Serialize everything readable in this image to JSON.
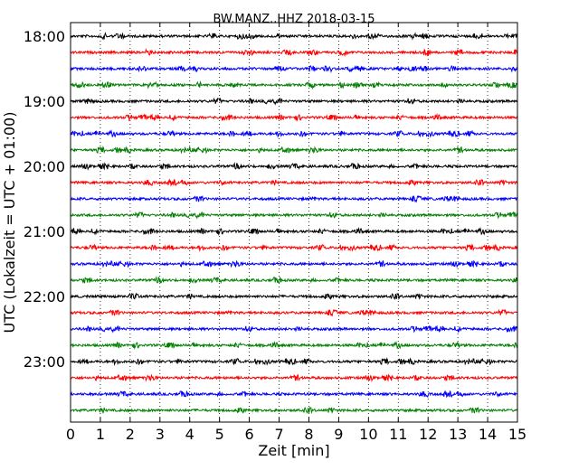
{
  "chart_data": {
    "type": "line",
    "title": "BW.MANZ..HHZ 2018-03-15",
    "xlabel": "Zeit  [min]",
    "ylabel": "UTC (Lokalzeit = UTC + 01:00)",
    "xlim": [
      0,
      15
    ],
    "x_ticks": [
      "0",
      "1",
      "2",
      "3",
      "4",
      "5",
      "6",
      "7",
      "8",
      "9",
      "10",
      "11",
      "12",
      "13",
      "14",
      "15"
    ],
    "y_ticks": [
      {
        "label": "18:00",
        "row": 0
      },
      {
        "label": "19:00",
        "row": 4
      },
      {
        "label": "20:00",
        "row": 8
      },
      {
        "label": "21:00",
        "row": 12
      },
      {
        "label": "22:00",
        "row": 16
      },
      {
        "label": "23:00",
        "row": 20
      }
    ],
    "grid": "vertical dotted",
    "row_minutes": 15,
    "row_count": 24,
    "colors": [
      "#000000",
      "#ff0000",
      "#0000ff",
      "#008000"
    ]
  }
}
